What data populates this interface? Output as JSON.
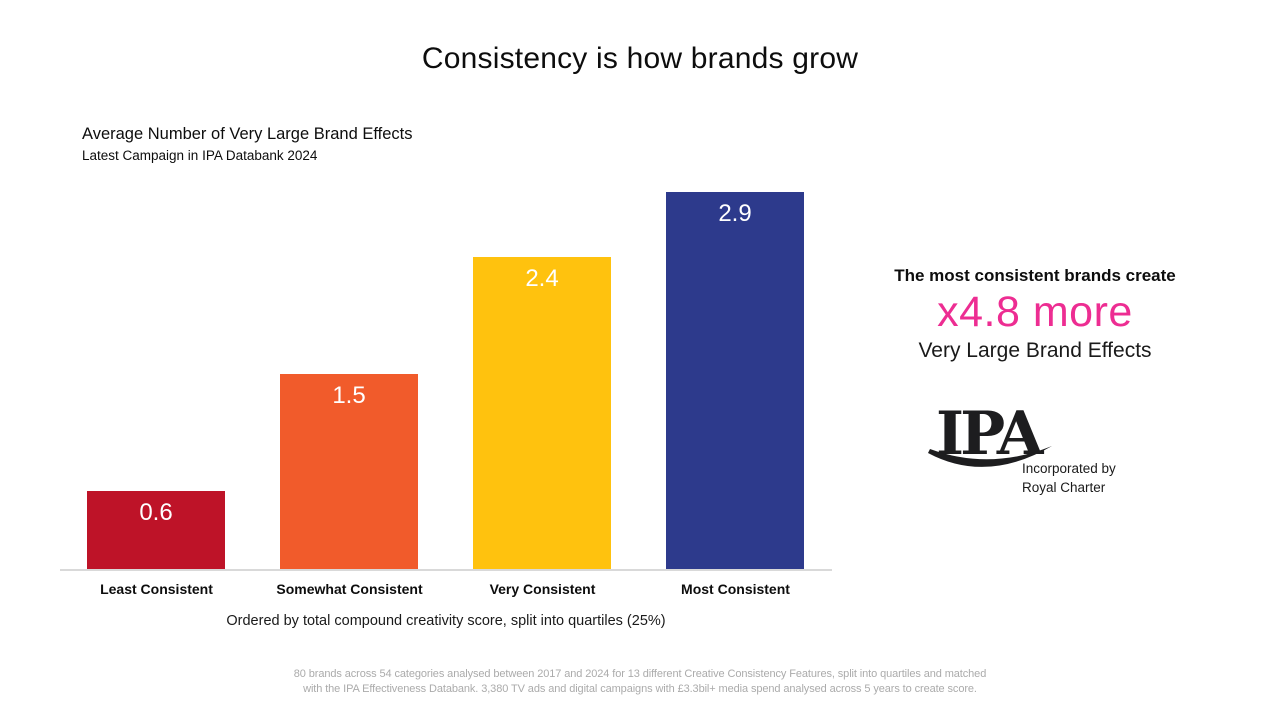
{
  "title": "Consistency is how brands grow",
  "chart": {
    "heading": "Average Number of Very Large Brand Effects",
    "subheading": "Latest Campaign in IPA Databank 2024"
  },
  "chart_data": {
    "type": "bar",
    "title": "Average Number of Very Large Brand Effects",
    "subtitle": "Latest Campaign in IPA Databank 2024",
    "categories": [
      "Least Consistent",
      "Somewhat Consistent",
      "Very Consistent",
      "Most Consistent"
    ],
    "values": [
      0.6,
      1.5,
      2.4,
      2.9
    ],
    "bar_colors": [
      "#BE1328",
      "#F15B2B",
      "#FFC20E",
      "#2D3A8C"
    ],
    "value_label_color": "#FFFFFF",
    "xlabel": "Ordered by total compound creativity score, split into quartiles (25%)",
    "ylabel": "",
    "ylim": [
      0,
      2.9
    ],
    "grid": false,
    "legend": false,
    "axis_line_color": "#D9D9D9"
  },
  "callout": {
    "line1": "The most consistent brands create",
    "highlight": "x4.8 more",
    "highlight_color": "#ED2D92",
    "line2": "Very Large Brand Effects"
  },
  "logo": {
    "text": "IPA",
    "caption_line1": "Incorporated by",
    "caption_line2": "Royal Charter"
  },
  "footer": {
    "line1": "80 brands across 54 categories analysed between 2017 and 2024 for 13 different Creative Consistency Features, split into quartiles and matched",
    "line2": "with the IPA Effectiveness Databank. 3,380 TV ads and digital campaigns with £3.3bil+ media spend analysed across 5 years to create score."
  }
}
